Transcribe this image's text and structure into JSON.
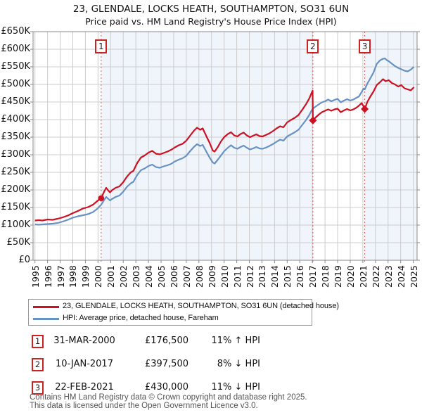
{
  "title": "23, GLENDALE, LOCKS HEATH, SOUTHAMPTON, SO31 6UN",
  "subtitle": "Price paid vs. HM Land Registry's House Price Index (HPI)",
  "colors": {
    "property_line": "#cc1122",
    "hpi_line": "#6792c4",
    "shaded_region": "#f0f4fb",
    "grid": "#cccccc",
    "plot_border": "#888888",
    "tick": "#888888",
    "sale_dashed_line": "#e05555",
    "sale_box_border": "#cc2222",
    "footer_text": "#555555"
  },
  "chart_data": {
    "type": "line",
    "title": "23, GLENDALE, LOCKS HEATH, SOUTHAMPTON, SO31 6UN",
    "subtitle": "Price paid vs. HM Land Registry's House Price Index (HPI)",
    "x_axis": {
      "min": 1994.85,
      "max": 2025.3,
      "tick_labels": [
        "1995",
        "1996",
        "1997",
        "1998",
        "1999",
        "2000",
        "2001",
        "2002",
        "2003",
        "2004",
        "2005",
        "2006",
        "2007",
        "2008",
        "2009",
        "2010",
        "2011",
        "2012",
        "2013",
        "2014",
        "2015",
        "2016",
        "2017",
        "2018",
        "2019",
        "2020",
        "2021",
        "2022",
        "2023",
        "2024",
        "2025"
      ]
    },
    "y_axis": {
      "min": 0,
      "max": 650,
      "unit": "GBP thousands",
      "tick_step": 50,
      "tick_labels": [
        "£0",
        "£50K",
        "£100K",
        "£150K",
        "£200K",
        "£250K",
        "£300K",
        "£350K",
        "£400K",
        "£450K",
        "£500K",
        "£550K",
        "£600K",
        "£650K"
      ]
    },
    "series": [
      {
        "name": "23, GLENDALE, LOCKS HEATH, SOUTHAMPTON, SO31 6UN (detached house)",
        "color": "#cc1122",
        "points": [
          [
            1995.0,
            113
          ],
          [
            1995.3,
            114
          ],
          [
            1995.6,
            113
          ],
          [
            1996.0,
            116
          ],
          [
            1996.4,
            115
          ],
          [
            1996.8,
            118
          ],
          [
            1997.2,
            122
          ],
          [
            1997.6,
            127
          ],
          [
            1998.0,
            134
          ],
          [
            1998.4,
            140
          ],
          [
            1998.8,
            147
          ],
          [
            1999.2,
            151
          ],
          [
            1999.6,
            158
          ],
          [
            2000.0,
            170
          ],
          [
            2000.25,
            176.5
          ],
          [
            2000.5,
            196
          ],
          [
            2000.65,
            206
          ],
          [
            2000.8,
            199
          ],
          [
            2000.95,
            193
          ],
          [
            2001.1,
            199
          ],
          [
            2001.4,
            206
          ],
          [
            2001.7,
            210
          ],
          [
            2002.0,
            222
          ],
          [
            2002.3,
            238
          ],
          [
            2002.6,
            250
          ],
          [
            2002.8,
            254
          ],
          [
            2003.1,
            276
          ],
          [
            2003.4,
            292
          ],
          [
            2003.7,
            298
          ],
          [
            2004.0,
            306
          ],
          [
            2004.3,
            311
          ],
          [
            2004.6,
            303
          ],
          [
            2004.9,
            301
          ],
          [
            2005.2,
            305
          ],
          [
            2005.5,
            309
          ],
          [
            2005.8,
            314
          ],
          [
            2006.1,
            321
          ],
          [
            2006.4,
            327
          ],
          [
            2006.7,
            331
          ],
          [
            2007.0,
            340
          ],
          [
            2007.3,
            354
          ],
          [
            2007.6,
            368
          ],
          [
            2007.85,
            377
          ],
          [
            2008.1,
            371
          ],
          [
            2008.3,
            375
          ],
          [
            2008.6,
            352
          ],
          [
            2008.85,
            334
          ],
          [
            2009.1,
            312
          ],
          [
            2009.25,
            309
          ],
          [
            2009.5,
            322
          ],
          [
            2009.75,
            338
          ],
          [
            2010.0,
            350
          ],
          [
            2010.3,
            359
          ],
          [
            2010.55,
            364
          ],
          [
            2010.8,
            355
          ],
          [
            2011.05,
            352
          ],
          [
            2011.3,
            359
          ],
          [
            2011.55,
            363
          ],
          [
            2011.8,
            355
          ],
          [
            2012.05,
            350
          ],
          [
            2012.3,
            354
          ],
          [
            2012.55,
            358
          ],
          [
            2012.8,
            353
          ],
          [
            2013.05,
            352
          ],
          [
            2013.3,
            356
          ],
          [
            2013.6,
            361
          ],
          [
            2013.9,
            368
          ],
          [
            2014.2,
            376
          ],
          [
            2014.45,
            381
          ],
          [
            2014.7,
            378
          ],
          [
            2015.0,
            392
          ],
          [
            2015.3,
            399
          ],
          [
            2015.6,
            405
          ],
          [
            2015.9,
            413
          ],
          [
            2016.2,
            428
          ],
          [
            2016.5,
            444
          ],
          [
            2016.75,
            460
          ],
          [
            2016.95,
            477
          ],
          [
            2017.02,
            482
          ],
          [
            2017.04,
            397.5
          ],
          [
            2017.25,
            406
          ],
          [
            2017.5,
            414
          ],
          [
            2017.75,
            421
          ],
          [
            2018.0,
            425
          ],
          [
            2018.25,
            429
          ],
          [
            2018.5,
            425
          ],
          [
            2018.75,
            429
          ],
          [
            2019.0,
            431
          ],
          [
            2019.25,
            421
          ],
          [
            2019.5,
            426
          ],
          [
            2019.75,
            430
          ],
          [
            2020.0,
            426
          ],
          [
            2020.25,
            429
          ],
          [
            2020.5,
            434
          ],
          [
            2020.7,
            440
          ],
          [
            2020.9,
            447
          ],
          [
            2021.05,
            438
          ],
          [
            2021.15,
            430
          ],
          [
            2021.35,
            450
          ],
          [
            2021.6,
            466
          ],
          [
            2021.85,
            480
          ],
          [
            2022.1,
            498
          ],
          [
            2022.35,
            506
          ],
          [
            2022.6,
            515
          ],
          [
            2022.8,
            509
          ],
          [
            2023.05,
            512
          ],
          [
            2023.3,
            504
          ],
          [
            2023.55,
            500
          ],
          [
            2023.8,
            494
          ],
          [
            2024.05,
            498
          ],
          [
            2024.3,
            489
          ],
          [
            2024.55,
            486
          ],
          [
            2024.8,
            483
          ],
          [
            2025.05,
            492
          ]
        ]
      },
      {
        "name": "HPI: Average price, detached house, Fareham",
        "color": "#6792c4",
        "points": [
          [
            1995.0,
            102
          ],
          [
            1995.3,
            101
          ],
          [
            1995.6,
            102
          ],
          [
            1996.0,
            103
          ],
          [
            1996.4,
            104
          ],
          [
            1996.8,
            106
          ],
          [
            1997.2,
            110
          ],
          [
            1997.6,
            115
          ],
          [
            1998.0,
            121
          ],
          [
            1998.4,
            125
          ],
          [
            1998.8,
            128
          ],
          [
            1999.2,
            131
          ],
          [
            1999.6,
            137
          ],
          [
            2000.0,
            148
          ],
          [
            2000.25,
            158
          ],
          [
            2000.5,
            172
          ],
          [
            2000.65,
            180
          ],
          [
            2000.8,
            175
          ],
          [
            2000.95,
            170
          ],
          [
            2001.1,
            174
          ],
          [
            2001.4,
            180
          ],
          [
            2001.7,
            184
          ],
          [
            2002.0,
            195
          ],
          [
            2002.3,
            209
          ],
          [
            2002.6,
            219
          ],
          [
            2002.8,
            223
          ],
          [
            2003.1,
            242
          ],
          [
            2003.4,
            256
          ],
          [
            2003.7,
            261
          ],
          [
            2004.0,
            268
          ],
          [
            2004.3,
            272
          ],
          [
            2004.6,
            265
          ],
          [
            2004.9,
            263
          ],
          [
            2005.2,
            267
          ],
          [
            2005.5,
            270
          ],
          [
            2005.8,
            274
          ],
          [
            2006.1,
            281
          ],
          [
            2006.4,
            286
          ],
          [
            2006.7,
            290
          ],
          [
            2007.0,
            297
          ],
          [
            2007.3,
            310
          ],
          [
            2007.6,
            322
          ],
          [
            2007.85,
            330
          ],
          [
            2008.1,
            325
          ],
          [
            2008.3,
            328
          ],
          [
            2008.6,
            308
          ],
          [
            2008.85,
            292
          ],
          [
            2009.1,
            278
          ],
          [
            2009.25,
            275
          ],
          [
            2009.5,
            286
          ],
          [
            2009.75,
            298
          ],
          [
            2010.0,
            310
          ],
          [
            2010.3,
            320
          ],
          [
            2010.55,
            327
          ],
          [
            2010.8,
            320
          ],
          [
            2011.05,
            317
          ],
          [
            2011.3,
            322
          ],
          [
            2011.55,
            326
          ],
          [
            2011.8,
            320
          ],
          [
            2012.05,
            315
          ],
          [
            2012.3,
            318
          ],
          [
            2012.55,
            322
          ],
          [
            2012.8,
            318
          ],
          [
            2013.05,
            317
          ],
          [
            2013.3,
            320
          ],
          [
            2013.6,
            325
          ],
          [
            2013.9,
            331
          ],
          [
            2014.2,
            338
          ],
          [
            2014.45,
            343
          ],
          [
            2014.7,
            340
          ],
          [
            2015.0,
            352
          ],
          [
            2015.3,
            358
          ],
          [
            2015.6,
            364
          ],
          [
            2015.9,
            371
          ],
          [
            2016.2,
            385
          ],
          [
            2016.5,
            399
          ],
          [
            2016.75,
            413
          ],
          [
            2017.0,
            430
          ],
          [
            2017.25,
            437
          ],
          [
            2017.5,
            443
          ],
          [
            2017.75,
            449
          ],
          [
            2018.0,
            452
          ],
          [
            2018.25,
            457
          ],
          [
            2018.5,
            452
          ],
          [
            2018.75,
            456
          ],
          [
            2019.0,
            459
          ],
          [
            2019.25,
            449
          ],
          [
            2019.5,
            454
          ],
          [
            2019.75,
            458
          ],
          [
            2020.0,
            454
          ],
          [
            2020.25,
            457
          ],
          [
            2020.5,
            462
          ],
          [
            2020.7,
            466
          ],
          [
            2020.9,
            478
          ],
          [
            2021.05,
            488
          ],
          [
            2021.15,
            486
          ],
          [
            2021.35,
            502
          ],
          [
            2021.6,
            518
          ],
          [
            2021.85,
            534
          ],
          [
            2022.1,
            558
          ],
          [
            2022.35,
            568
          ],
          [
            2022.6,
            573
          ],
          [
            2022.75,
            574
          ],
          [
            2022.9,
            569
          ],
          [
            2023.05,
            566
          ],
          [
            2023.3,
            559
          ],
          [
            2023.55,
            552
          ],
          [
            2023.8,
            547
          ],
          [
            2024.05,
            543
          ],
          [
            2024.3,
            539
          ],
          [
            2024.55,
            537
          ],
          [
            2024.8,
            542
          ],
          [
            2025.05,
            550
          ]
        ]
      }
    ],
    "sales": [
      {
        "label": "1",
        "date": "31-MAR-2000",
        "x": 2000.25,
        "price_k": 176.5,
        "marker": "circle"
      },
      {
        "label": "2",
        "date": "10-JAN-2017",
        "x": 2017.04,
        "price_k": 397.5,
        "marker": "diamond"
      },
      {
        "label": "3",
        "date": "22-FEB-2021",
        "x": 2021.15,
        "price_k": 430,
        "marker": "diamond"
      }
    ],
    "shaded_regions": [
      [
        2000.25,
        2017.04
      ],
      [
        2021.15,
        2025.3
      ]
    ],
    "legend_position": "bottom",
    "grid": true
  },
  "legend": {
    "items": [
      {
        "label": "23, GLENDALE, LOCKS HEATH, SOUTHAMPTON, SO31 6UN (detached house)",
        "color": "#cc1122"
      },
      {
        "label": "HPI: Average price, detached house, Fareham",
        "color": "#6792c4"
      }
    ]
  },
  "transactions": [
    {
      "num": "1",
      "date": "31-MAR-2000",
      "price": "£176,500",
      "hpi": "11% ↑ HPI"
    },
    {
      "num": "2",
      "date": "10-JAN-2017",
      "price": "£397,500",
      "hpi": "8% ↓ HPI"
    },
    {
      "num": "3",
      "date": "22-FEB-2021",
      "price": "£430,000",
      "hpi": "11% ↓ HPI"
    }
  ],
  "footer": {
    "line1": "Contains HM Land Registry data © Crown copyright and database right 2025.",
    "line2": "This data is licensed under the Open Government Licence v3.0."
  }
}
